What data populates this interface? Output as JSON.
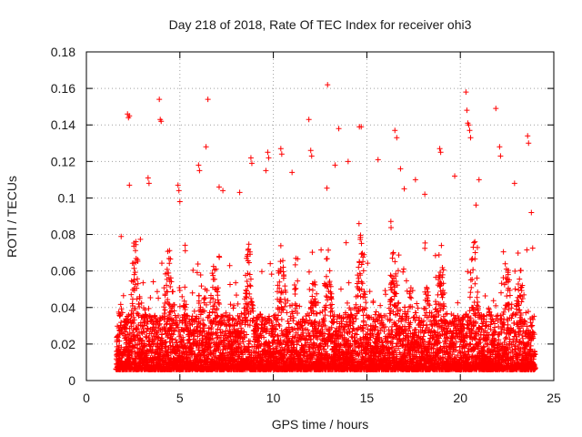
{
  "chart_data": {
    "type": "scatter",
    "title": "Day 218 of 2018, Rate Of TEC Index for receiver ohi3",
    "xlabel": "GPS time / hours",
    "ylabel": "ROTI / TECUs",
    "xlim": [
      0,
      25
    ],
    "ylim": [
      0,
      0.18
    ],
    "xticks": [
      0,
      5,
      10,
      15,
      20,
      25
    ],
    "xtick_labels": [
      "0",
      "5",
      "10",
      "15",
      "20",
      "25"
    ],
    "yticks": [
      0,
      0.02,
      0.04,
      0.06,
      0.08,
      0.1,
      0.12,
      0.14,
      0.16,
      0.18
    ],
    "ytick_labels": [
      "0",
      "0.02",
      "0.04",
      "0.06",
      "0.08",
      "0.1",
      "0.12",
      "0.14",
      "0.16",
      "0.18"
    ],
    "grid": true,
    "marker": "+",
    "color": "#ff0000",
    "x_data_range": [
      1.6,
      24.0
    ],
    "series": [
      {
        "name": "ROTI",
        "points": [
          [
            2.2,
            0.146
          ],
          [
            2.25,
            0.144
          ],
          [
            2.3,
            0.145
          ],
          [
            3.9,
            0.154
          ],
          [
            3.95,
            0.143
          ],
          [
            4.0,
            0.142
          ],
          [
            6.5,
            0.154
          ],
          [
            6.4,
            0.128
          ],
          [
            12.9,
            0.162
          ],
          [
            20.3,
            0.158
          ],
          [
            20.35,
            0.148
          ],
          [
            20.4,
            0.141
          ],
          [
            20.45,
            0.14
          ],
          [
            20.5,
            0.137
          ],
          [
            20.55,
            0.133
          ],
          [
            21.9,
            0.149
          ],
          [
            11.9,
            0.143
          ],
          [
            16.5,
            0.137
          ],
          [
            16.6,
            0.133
          ],
          [
            14.6,
            0.139
          ],
          [
            14.7,
            0.139
          ],
          [
            13.5,
            0.138
          ],
          [
            18.9,
            0.127
          ],
          [
            18.95,
            0.125
          ],
          [
            23.6,
            0.134
          ],
          [
            23.65,
            0.13
          ],
          [
            10.4,
            0.127
          ],
          [
            10.45,
            0.124
          ],
          [
            9.7,
            0.125
          ],
          [
            9.75,
            0.122
          ],
          [
            12.0,
            0.126
          ],
          [
            12.05,
            0.123
          ],
          [
            22.1,
            0.128
          ],
          [
            22.15,
            0.123
          ],
          [
            8.8,
            0.122
          ],
          [
            8.85,
            0.119
          ],
          [
            6.0,
            0.118
          ],
          [
            6.05,
            0.115
          ],
          [
            3.3,
            0.111
          ],
          [
            3.35,
            0.108
          ],
          [
            4.9,
            0.107
          ],
          [
            4.95,
            0.104
          ],
          [
            7.1,
            0.106
          ],
          [
            2.3,
            0.107
          ],
          [
            5.0,
            0.098
          ],
          [
            7.3,
            0.104
          ],
          [
            9.6,
            0.115
          ],
          [
            11.0,
            0.114
          ],
          [
            13.3,
            0.118
          ],
          [
            14.0,
            0.12
          ],
          [
            15.6,
            0.121
          ],
          [
            16.8,
            0.116
          ],
          [
            17.6,
            0.11
          ],
          [
            19.7,
            0.112
          ],
          [
            21.0,
            0.11
          ],
          [
            22.9,
            0.108
          ],
          [
            23.8,
            0.092
          ],
          [
            8.2,
            0.103
          ],
          [
            17.0,
            0.105
          ],
          [
            18.1,
            0.102
          ]
        ]
      }
    ]
  }
}
